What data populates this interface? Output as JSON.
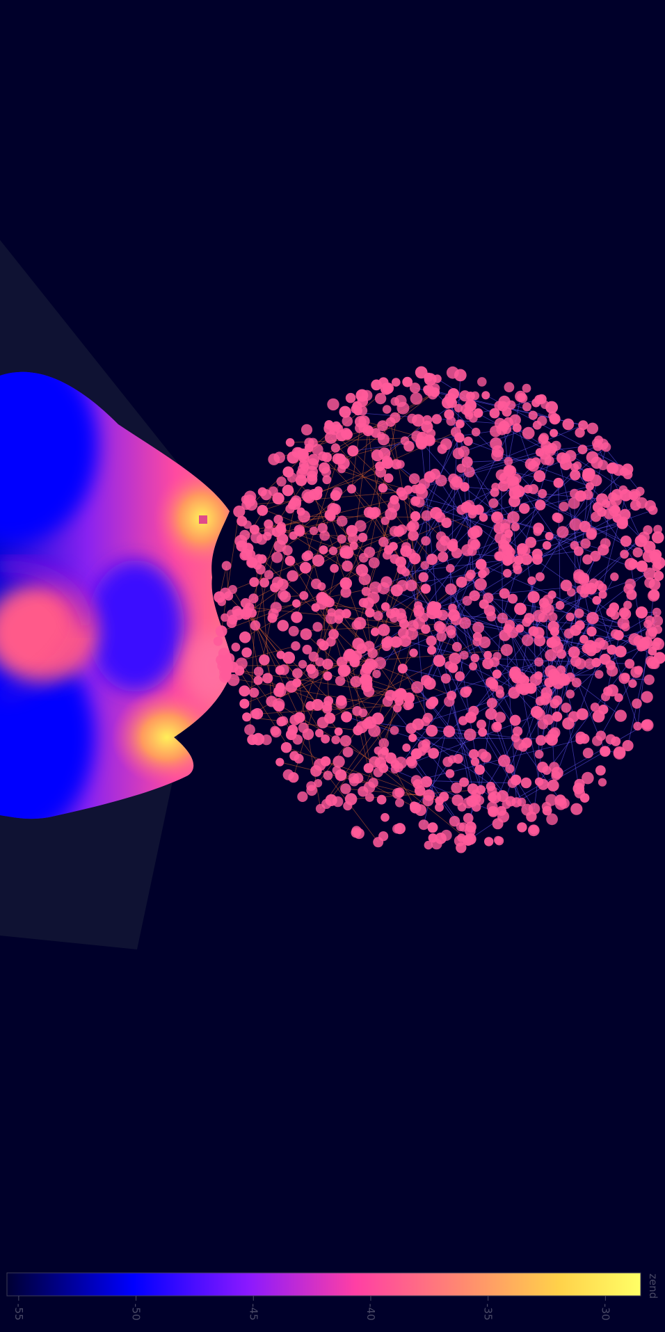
{
  "chart_data": {
    "type": "3d-surface-network",
    "surface": {
      "colorscale": [
        "#000033",
        "#0000ff",
        "#8a19ff",
        "#ff3fa4",
        "#ff8a70",
        "#ffd14a",
        "#ffff66"
      ],
      "shading": "smooth"
    },
    "network": {
      "node_color": "#ff5a9a",
      "edge_colors": {
        "near": "#e0642a",
        "far": "#6a5cff"
      },
      "node_count_estimate": 1200
    },
    "colorbar": {
      "title": "zend",
      "orientation": "horizontal",
      "range": [
        -55.5,
        -28.5
      ],
      "ticks": [
        -55,
        -50,
        -45,
        -40,
        -35,
        -30
      ],
      "tick_labels": [
        "-55",
        "-50",
        "-45",
        "-40",
        "-35",
        "-30"
      ],
      "tick_label_rotation": "90deg"
    }
  }
}
